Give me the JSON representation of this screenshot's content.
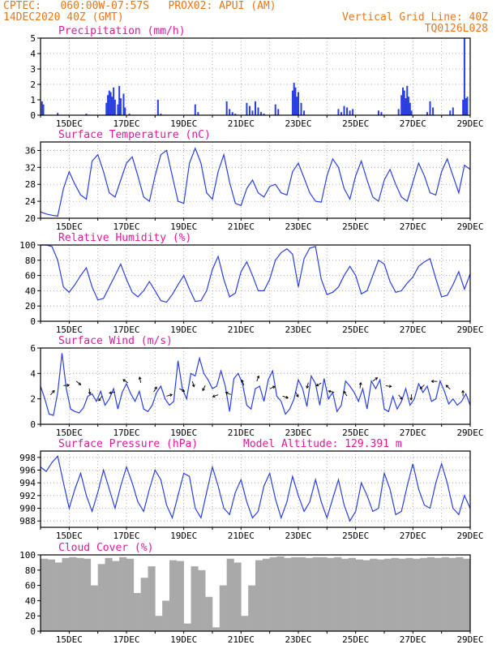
{
  "header": {
    "line1_left": "CPTEC:   060:00W-07:57S   PROX02: APUI (AM)",
    "line2_left": "14DEC2020 40Z (GMT)",
    "line2_right": "Vertical Grid Line: 40Z",
    "line3_right": "TQ0126L028",
    "model_altitude": "Model Altitude: 129.391 m"
  },
  "colors": {
    "line": "#2a3fe0",
    "title": "#e0189a",
    "header": "#e8761a",
    "cloud": "#a9a9a9"
  },
  "chart_data": [
    {
      "type": "bar",
      "title": "Precipitation (mm/h)",
      "ylim": [
        0,
        5
      ],
      "yticks": [
        0,
        1,
        2,
        3,
        4,
        5
      ],
      "xticklabels": [
        "15DEC",
        "17DEC",
        "19DEC",
        "21DEC",
        "23DEC",
        "25DEC",
        "27DEC",
        "29DEC"
      ],
      "x_days": [
        14,
        29
      ],
      "grid": true,
      "values": [
        [
          14.05,
          0.9
        ],
        [
          14.1,
          0.7
        ],
        [
          14.6,
          0.15
        ],
        [
          15.6,
          0.1
        ],
        [
          16.3,
          0.8
        ],
        [
          16.35,
          1.3
        ],
        [
          16.4,
          1.6
        ],
        [
          16.45,
          1.5
        ],
        [
          16.5,
          1.2
        ],
        [
          16.55,
          1.8
        ],
        [
          16.6,
          1.0
        ],
        [
          16.7,
          0.7
        ],
        [
          16.75,
          1.9
        ],
        [
          16.8,
          1.1
        ],
        [
          16.9,
          1.4
        ],
        [
          16.95,
          0.5
        ],
        [
          17.1,
          0.1
        ],
        [
          18.1,
          1.0
        ],
        [
          18.2,
          0.1
        ],
        [
          19.4,
          0.7
        ],
        [
          19.5,
          0.2
        ],
        [
          20.5,
          0.9
        ],
        [
          20.6,
          0.4
        ],
        [
          20.7,
          0.2
        ],
        [
          20.8,
          0.1
        ],
        [
          21.2,
          0.8
        ],
        [
          21.3,
          0.6
        ],
        [
          21.4,
          0.3
        ],
        [
          21.5,
          0.9
        ],
        [
          21.6,
          0.5
        ],
        [
          21.7,
          0.2
        ],
        [
          21.8,
          0.1
        ],
        [
          22.2,
          0.7
        ],
        [
          22.3,
          0.4
        ],
        [
          22.8,
          1.6
        ],
        [
          22.85,
          2.1
        ],
        [
          22.9,
          1.8
        ],
        [
          22.95,
          1.2
        ],
        [
          23.0,
          1.5
        ],
        [
          23.1,
          0.8
        ],
        [
          23.2,
          0.3
        ],
        [
          24.4,
          0.4
        ],
        [
          24.5,
          0.2
        ],
        [
          24.6,
          0.6
        ],
        [
          24.7,
          0.5
        ],
        [
          24.8,
          0.3
        ],
        [
          24.9,
          0.4
        ],
        [
          25.8,
          0.3
        ],
        [
          25.9,
          0.2
        ],
        [
          26.5,
          0.4
        ],
        [
          26.6,
          1.3
        ],
        [
          26.65,
          1.8
        ],
        [
          26.7,
          1.6
        ],
        [
          26.75,
          1.1
        ],
        [
          26.8,
          1.9
        ],
        [
          26.85,
          1.2
        ],
        [
          26.9,
          0.8
        ],
        [
          26.95,
          0.3
        ],
        [
          27.5,
          0.2
        ],
        [
          27.6,
          0.9
        ],
        [
          27.7,
          0.5
        ],
        [
          28.3,
          0.3
        ],
        [
          28.4,
          0.5
        ],
        [
          28.75,
          1.0
        ],
        [
          28.8,
          5.0
        ],
        [
          28.85,
          1.1
        ],
        [
          28.9,
          1.2
        ]
      ]
    },
    {
      "type": "line",
      "title": "Surface Temperature (nC)",
      "ylim": [
        20,
        38
      ],
      "yticks": [
        20,
        24,
        28,
        32,
        36
      ],
      "xticklabels": [
        "15DEC",
        "17DEC",
        "19DEC",
        "21DEC",
        "23DEC",
        "25DEC",
        "27DEC",
        "29DEC"
      ],
      "x_days": [
        14,
        29
      ],
      "grid": true,
      "x": [
        14.0,
        14.2,
        14.4,
        14.6,
        14.8,
        15.0,
        15.2,
        15.4,
        15.6,
        15.8,
        16.0,
        16.2,
        16.4,
        16.6,
        16.8,
        17.0,
        17.2,
        17.4,
        17.6,
        17.8,
        18.0,
        18.2,
        18.4,
        18.6,
        18.8,
        19.0,
        19.2,
        19.4,
        19.6,
        19.8,
        20.0,
        20.2,
        20.4,
        20.6,
        20.8,
        21.0,
        21.2,
        21.4,
        21.6,
        21.8,
        22.0,
        22.2,
        22.4,
        22.6,
        22.8,
        23.0,
        23.2,
        23.4,
        23.6,
        23.8,
        24.0,
        24.2,
        24.4,
        24.6,
        24.8,
        25.0,
        25.2,
        25.4,
        25.6,
        25.8,
        26.0,
        26.2,
        26.4,
        26.6,
        26.8,
        27.0,
        27.2,
        27.4,
        27.6,
        27.8,
        28.0,
        28.2,
        28.4,
        28.6,
        28.8,
        29.0
      ],
      "values": [
        21.5,
        21.0,
        20.7,
        20.5,
        27.0,
        31.0,
        28.0,
        25.5,
        24.5,
        33.5,
        35.0,
        31.0,
        26.0,
        25.0,
        29.0,
        33.0,
        34.5,
        30.0,
        25.0,
        24.0,
        30.0,
        35.0,
        36.0,
        30.0,
        24.0,
        23.5,
        33.0,
        36.5,
        33.0,
        26.0,
        24.5,
        31.0,
        35.0,
        28.5,
        23.5,
        23.0,
        27.0,
        29.0,
        26.0,
        25.0,
        27.5,
        28.0,
        26.0,
        25.5,
        31.0,
        33.0,
        29.5,
        26.0,
        24.0,
        23.8,
        30.0,
        34.0,
        32.0,
        27.0,
        24.5,
        30.0,
        33.5,
        29.0,
        25.0,
        24.0,
        29.0,
        31.5,
        28.0,
        25.0,
        24.0,
        28.5,
        33.0,
        30.0,
        26.0,
        25.5,
        31.0,
        34.0,
        30.0,
        26.0,
        32.5,
        31.5
      ]
    },
    {
      "type": "line",
      "title": "Relative Humidity (%)",
      "ylim": [
        0,
        100
      ],
      "yticks": [
        0,
        20,
        40,
        60,
        80,
        100
      ],
      "xticklabels": [
        "15DEC",
        "17DEC",
        "19DEC",
        "21DEC",
        "23DEC",
        "25DEC",
        "27DEC",
        "29DEC"
      ],
      "x_days": [
        14,
        29
      ],
      "grid": true,
      "x": [
        14.0,
        14.2,
        14.4,
        14.6,
        14.8,
        15.0,
        15.2,
        15.4,
        15.6,
        15.8,
        16.0,
        16.2,
        16.4,
        16.6,
        16.8,
        17.0,
        17.2,
        17.4,
        17.6,
        17.8,
        18.0,
        18.2,
        18.4,
        18.6,
        18.8,
        19.0,
        19.2,
        19.4,
        19.6,
        19.8,
        20.0,
        20.2,
        20.4,
        20.6,
        20.8,
        21.0,
        21.2,
        21.4,
        21.6,
        21.8,
        22.0,
        22.2,
        22.4,
        22.6,
        22.8,
        23.0,
        23.2,
        23.4,
        23.6,
        23.8,
        24.0,
        24.2,
        24.4,
        24.6,
        24.8,
        25.0,
        25.2,
        25.4,
        25.6,
        25.8,
        26.0,
        26.2,
        26.4,
        26.6,
        26.8,
        27.0,
        27.2,
        27.4,
        27.6,
        27.8,
        28.0,
        28.2,
        28.4,
        28.6,
        28.8,
        29.0
      ],
      "values": [
        100,
        100,
        98,
        80,
        45,
        38,
        48,
        60,
        70,
        45,
        28,
        30,
        45,
        60,
        75,
        55,
        38,
        32,
        40,
        52,
        40,
        27,
        25,
        35,
        48,
        60,
        42,
        26,
        27,
        40,
        68,
        85,
        55,
        32,
        37,
        65,
        78,
        60,
        40,
        40,
        55,
        80,
        90,
        95,
        88,
        45,
        82,
        96,
        98,
        55,
        35,
        38,
        45,
        60,
        72,
        60,
        36,
        40,
        60,
        80,
        75,
        52,
        38,
        40,
        50,
        58,
        72,
        78,
        82,
        56,
        32,
        34,
        48,
        65,
        42,
        62
      ]
    },
    {
      "type": "line",
      "title": "Surface Wind (m/s)",
      "ylim": [
        0,
        6
      ],
      "yticks": [
        0,
        2,
        4,
        6
      ],
      "xticklabels": [
        "15DEC",
        "17DEC",
        "19DEC",
        "21DEC",
        "23DEC",
        "25DEC",
        "27DEC",
        "29DEC"
      ],
      "x_days": [
        14,
        29
      ],
      "grid": true,
      "x": [
        14.0,
        14.15,
        14.3,
        14.45,
        14.6,
        14.75,
        14.9,
        15.05,
        15.2,
        15.35,
        15.5,
        15.65,
        15.8,
        15.95,
        16.1,
        16.25,
        16.4,
        16.55,
        16.7,
        16.85,
        17.0,
        17.15,
        17.3,
        17.45,
        17.6,
        17.75,
        17.9,
        18.05,
        18.2,
        18.35,
        18.5,
        18.65,
        18.8,
        18.95,
        19.1,
        19.25,
        19.4,
        19.55,
        19.7,
        19.85,
        20.0,
        20.15,
        20.3,
        20.45,
        20.6,
        20.75,
        20.9,
        21.05,
        21.2,
        21.35,
        21.5,
        21.65,
        21.8,
        21.95,
        22.1,
        22.25,
        22.4,
        22.55,
        22.7,
        22.85,
        23.0,
        23.15,
        23.3,
        23.45,
        23.6,
        23.75,
        23.9,
        24.05,
        24.2,
        24.35,
        24.5,
        24.65,
        24.8,
        24.95,
        25.1,
        25.25,
        25.4,
        25.55,
        25.7,
        25.85,
        26.0,
        26.15,
        26.3,
        26.45,
        26.6,
        26.75,
        26.9,
        27.05,
        27.2,
        27.35,
        27.5,
        27.65,
        27.8,
        27.95,
        28.1,
        28.25,
        28.4,
        28.55,
        28.7,
        28.85,
        29.0
      ],
      "values": [
        3.0,
        2.0,
        0.8,
        0.7,
        2.5,
        5.6,
        2.8,
        1.2,
        1.0,
        0.9,
        1.3,
        2.2,
        2.4,
        1.8,
        2.6,
        1.5,
        2.0,
        2.8,
        1.2,
        2.5,
        3.2,
        2.4,
        1.8,
        2.6,
        1.2,
        1.0,
        1.5,
        2.5,
        3.0,
        2.0,
        1.5,
        1.8,
        5.0,
        2.8,
        2.0,
        4.0,
        3.8,
        5.2,
        4.0,
        3.5,
        2.8,
        3.0,
        4.2,
        3.0,
        1.0,
        3.6,
        4.0,
        3.2,
        1.5,
        1.2,
        2.8,
        3.0,
        1.8,
        3.5,
        4.2,
        2.2,
        1.8,
        0.8,
        1.2,
        2.0,
        3.5,
        2.8,
        1.4,
        3.8,
        3.2,
        1.5,
        3.6,
        2.0,
        2.5,
        1.0,
        1.5,
        3.4,
        3.0,
        2.5,
        1.8,
        2.8,
        1.2,
        3.4,
        2.8,
        3.5,
        1.2,
        1.0,
        2.2,
        1.2,
        1.8,
        2.8,
        1.5,
        2.0,
        3.2,
        2.5,
        3.0,
        1.8,
        2.0,
        3.4,
        2.6,
        1.6,
        2.0,
        1.5,
        1.8,
        2.4,
        1.5
      ],
      "arrows_label": "wind direction vectors"
    },
    {
      "type": "line",
      "title": "Surface Pressure (hPa)",
      "ylim": [
        987,
        999
      ],
      "yticks": [
        988,
        990,
        992,
        994,
        996,
        998
      ],
      "xticklabels": [
        "15DEC",
        "17DEC",
        "19DEC",
        "21DEC",
        "23DEC",
        "25DEC",
        "27DEC",
        "29DEC"
      ],
      "x_days": [
        14,
        29
      ],
      "grid": true,
      "x": [
        14.0,
        14.2,
        14.4,
        14.6,
        14.8,
        15.0,
        15.2,
        15.4,
        15.6,
        15.8,
        16.0,
        16.2,
        16.4,
        16.6,
        16.8,
        17.0,
        17.2,
        17.4,
        17.6,
        17.8,
        18.0,
        18.2,
        18.4,
        18.6,
        18.8,
        19.0,
        19.2,
        19.4,
        19.6,
        19.8,
        20.0,
        20.2,
        20.4,
        20.6,
        20.8,
        21.0,
        21.2,
        21.4,
        21.6,
        21.8,
        22.0,
        22.2,
        22.4,
        22.6,
        22.8,
        23.0,
        23.2,
        23.4,
        23.6,
        23.8,
        24.0,
        24.2,
        24.4,
        24.6,
        24.8,
        25.0,
        25.2,
        25.4,
        25.6,
        25.8,
        26.0,
        26.2,
        26.4,
        26.6,
        26.8,
        27.0,
        27.2,
        27.4,
        27.6,
        27.8,
        28.0,
        28.2,
        28.4,
        28.6,
        28.8,
        29.0
      ],
      "values": [
        996.5,
        995.8,
        997.2,
        998.2,
        994.0,
        990.0,
        993.0,
        995.5,
        992.0,
        989.5,
        992.5,
        996.0,
        993.0,
        990.0,
        993.5,
        996.5,
        994.0,
        991.0,
        989.5,
        993.0,
        996.0,
        994.5,
        990.5,
        988.5,
        992.0,
        995.5,
        995.0,
        990.0,
        988.5,
        992.5,
        996.5,
        993.5,
        990.0,
        989.0,
        992.5,
        994.5,
        991.0,
        988.5,
        989.5,
        993.5,
        995.5,
        991.5,
        988.5,
        991.0,
        995.0,
        992.0,
        989.5,
        991.0,
        994.5,
        991.0,
        988.5,
        991.5,
        994.5,
        990.5,
        988.0,
        989.5,
        994.0,
        992.0,
        989.5,
        990.0,
        995.5,
        993.0,
        989.0,
        989.5,
        993.5,
        997.0,
        993.0,
        990.5,
        990.0,
        994.0,
        997.0,
        994.0,
        990.0,
        989.0,
        992.0,
        990.0
      ]
    },
    {
      "type": "bar",
      "title": "Cloud Cover (%)",
      "ylim": [
        0,
        100
      ],
      "yticks": [
        0,
        20,
        40,
        60,
        80,
        100
      ],
      "xticklabels": [
        "15DEC",
        "17DEC",
        "19DEC",
        "21DEC",
        "23DEC",
        "25DEC",
        "27DEC",
        "29DEC"
      ],
      "x_days": [
        14,
        29
      ],
      "grid": false,
      "x": [
        14.0,
        14.25,
        14.5,
        14.75,
        15.0,
        15.25,
        15.5,
        15.75,
        16.0,
        16.25,
        16.5,
        16.75,
        17.0,
        17.25,
        17.5,
        17.75,
        18.0,
        18.25,
        18.5,
        18.75,
        19.0,
        19.25,
        19.5,
        19.75,
        20.0,
        20.25,
        20.5,
        20.75,
        21.0,
        21.25,
        21.5,
        21.75,
        22.0,
        22.25,
        22.5,
        22.75,
        23.0,
        23.25,
        23.5,
        23.75,
        24.0,
        24.25,
        24.5,
        24.75,
        25.0,
        25.25,
        25.5,
        25.75,
        26.0,
        26.25,
        26.5,
        26.75,
        27.0,
        27.25,
        27.5,
        27.75,
        28.0,
        28.25,
        28.5,
        28.75
      ],
      "values": [
        95,
        94,
        90,
        96,
        97,
        96,
        95,
        60,
        88,
        96,
        92,
        97,
        95,
        50,
        70,
        85,
        20,
        40,
        93,
        92,
        10,
        85,
        80,
        45,
        5,
        60,
        95,
        90,
        20,
        60,
        93,
        95,
        97,
        98,
        96,
        97,
        97,
        96,
        97,
        97,
        96,
        97,
        95,
        96,
        94,
        93,
        95,
        94,
        95,
        96,
        95,
        96,
        95,
        96,
        97,
        96,
        97,
        96,
        97,
        95
      ]
    }
  ]
}
